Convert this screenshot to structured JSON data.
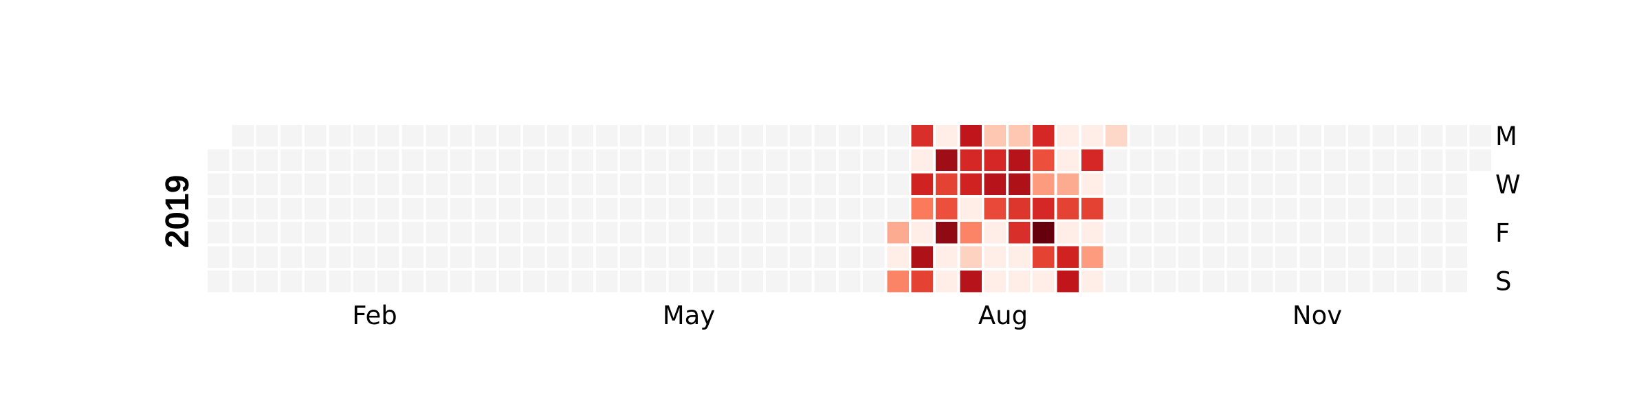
{
  "chart_data": {
    "type": "heatmap",
    "title": "",
    "year": "2019",
    "year_start_weekday": "Tuesday",
    "week_start": "Monday",
    "n_weeks": 53,
    "day_labels": [
      "M",
      "W",
      "F",
      "S"
    ],
    "month_labels": [
      "Feb",
      "May",
      "Aug",
      "Nov"
    ],
    "empty_color": "#f4f4f4",
    "color_scale": [
      "#fff5f0",
      "#fcbba1",
      "#fb6a4a",
      "#cb181d",
      "#67000d"
    ],
    "value_range": [
      0,
      1
    ],
    "active_weeks": [
      {
        "week": 28,
        "values": [
          null,
          null,
          null,
          null,
          0.3,
          0.03,
          0.42
        ]
      },
      {
        "week": 29,
        "values": [
          0.68,
          0.03,
          0.72,
          0.45,
          0.03,
          0.82,
          0.62
        ]
      },
      {
        "week": 30,
        "values": [
          0.03,
          0.86,
          0.62,
          0.58,
          0.9,
          0.03,
          0.03
        ]
      },
      {
        "week": 31,
        "values": [
          0.78,
          0.7,
          0.72,
          0.03,
          0.42,
          0.15,
          0.8
        ]
      },
      {
        "week": 32,
        "values": [
          0.2,
          0.7,
          0.8,
          0.6,
          0.03,
          0.03,
          0.03
        ]
      },
      {
        "week": 33,
        "values": [
          0.2,
          0.8,
          0.82,
          0.66,
          0.68,
          0.03,
          0.03
        ]
      },
      {
        "week": 34,
        "values": [
          0.7,
          0.58,
          0.35,
          0.7,
          1.0,
          0.62,
          0.03
        ]
      },
      {
        "week": 35,
        "values": [
          0.03,
          0.03,
          0.3,
          0.62,
          0.03,
          0.72,
          0.78
        ]
      },
      {
        "week": 36,
        "values": [
          0.03,
          0.7,
          0.03,
          0.62,
          0.03,
          0.35,
          0.03
        ]
      },
      {
        "week": 37,
        "values": [
          0.13,
          null,
          null,
          null,
          null,
          null,
          null
        ]
      }
    ]
  }
}
